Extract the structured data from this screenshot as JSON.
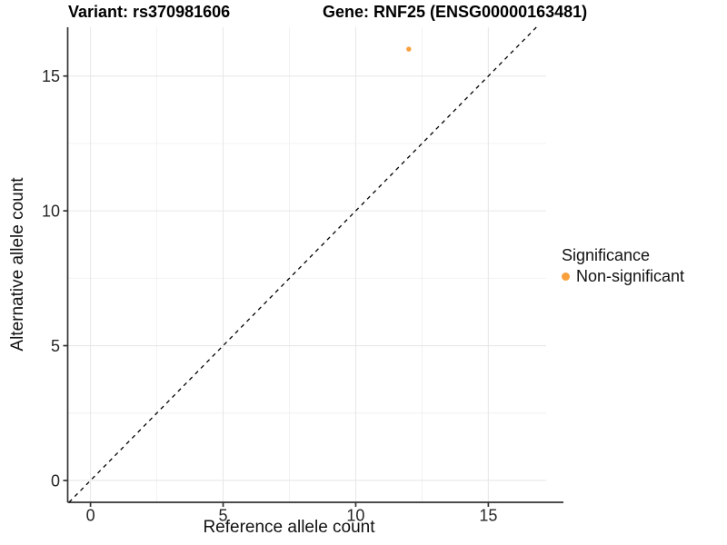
{
  "titles": {
    "variant": "Variant: rs370981606",
    "gene": "Gene: RNF25 (ENSG00000163481)"
  },
  "axes": {
    "x_label": "Reference allele count",
    "y_label": "Alternative allele count"
  },
  "legend": {
    "title": "Significance",
    "items": [
      {
        "label": "Non-significant",
        "color": "#F9A03C"
      }
    ]
  },
  "colors": {
    "point": "#F9A03C",
    "identity_line": "#000000",
    "axis_line": "#333333",
    "tick_label": "#262626",
    "grid_major": "#E8E8E8",
    "grid_minor": "#F0F0F0",
    "background": "#FFFFFF"
  },
  "chart_data": {
    "type": "scatter",
    "title": "Variant: rs370981606   |   Gene: RNF25 (ENSG00000163481)",
    "xlabel": "Reference allele count",
    "ylabel": "Alternative allele count",
    "xlim": [
      -0.86,
      17.18
    ],
    "ylim": [
      -0.81,
      16.81
    ],
    "x_ticks": [
      0,
      5,
      10,
      15
    ],
    "y_ticks": [
      0,
      5,
      10,
      15
    ],
    "x_minor_gridlines": [
      2.5,
      7.5,
      12.5
    ],
    "y_minor_gridlines": [
      2.5,
      7.5,
      12.5
    ],
    "grid": true,
    "legend_position": "right",
    "identity_line": {
      "type": "y=x",
      "style": "dashed",
      "color": "#000000"
    },
    "series": [
      {
        "name": "Non-significant",
        "color": "#F9A03C",
        "points": [
          {
            "x": 12,
            "y": 16
          }
        ]
      }
    ]
  }
}
